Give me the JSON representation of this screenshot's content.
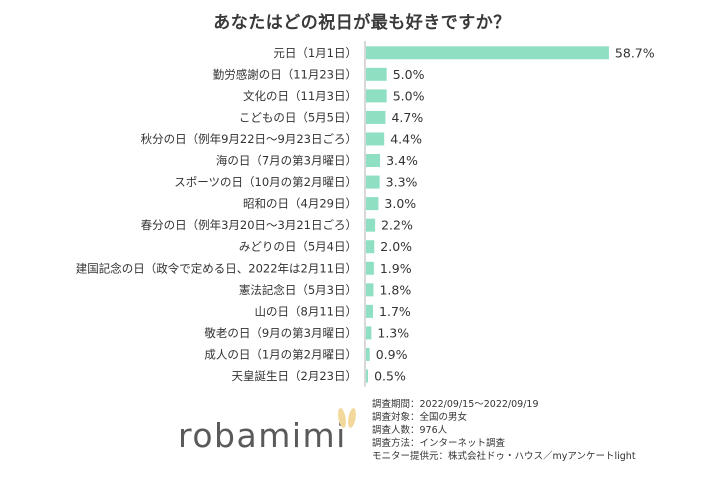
{
  "chart_data": {
    "type": "bar",
    "orientation": "horizontal",
    "title": "あなたはどの祝日が最も好きですか？",
    "categories": [
      "元日（1月1日）",
      "勤労感謝の日（11月23日）",
      "文化の日（11月3日）",
      "こどもの日（5月5日）",
      "秋分の日（例年9月22日～9月23日ごろ）",
      "海の日（7月の第3月曜日）",
      "スポーツの日（10月の第2月曜日）",
      "昭和の日（4月29日）",
      "春分の日（例年3月20日～3月21日ごろ）",
      "みどりの日（5月4日）",
      "建国記念の日（政令で定める日、2022年は2月11日）",
      "憲法記念日（5月3日）",
      "山の日（8月11日）",
      "敬老の日（9月の第3月曜日）",
      "成人の日（1月の第2月曜日）",
      "天皇誕生日（2月23日）"
    ],
    "values": [
      58.7,
      5.0,
      5.0,
      4.7,
      4.4,
      3.4,
      3.3,
      3.0,
      2.2,
      2.0,
      1.9,
      1.8,
      1.7,
      1.3,
      0.9,
      0.5
    ],
    "value_labels": [
      "58.7%",
      "5.0%",
      "5.0%",
      "4.7%",
      "4.4%",
      "3.4%",
      "3.3%",
      "3.0%",
      "2.2%",
      "2.0%",
      "1.9%",
      "1.8%",
      "1.7%",
      "1.3%",
      "0.9%",
      "0.5%"
    ],
    "unit": "%",
    "bar_color": "#8fdfc3",
    "axis_color": "#b0b0b0",
    "grid": false,
    "legend": "none"
  },
  "brand": {
    "name": "robamimi",
    "text_color": "#5a5a5a",
    "ear_color": "#f2d99b"
  },
  "survey_info": [
    "調査期間：2022/09/15～2022/09/19",
    "調査対象：全国の男女",
    "調査人数：976人",
    "調査方法：インターネット調査",
    "モニター提供元：株式会社ドゥ・ハウス／myアンケートlight"
  ]
}
